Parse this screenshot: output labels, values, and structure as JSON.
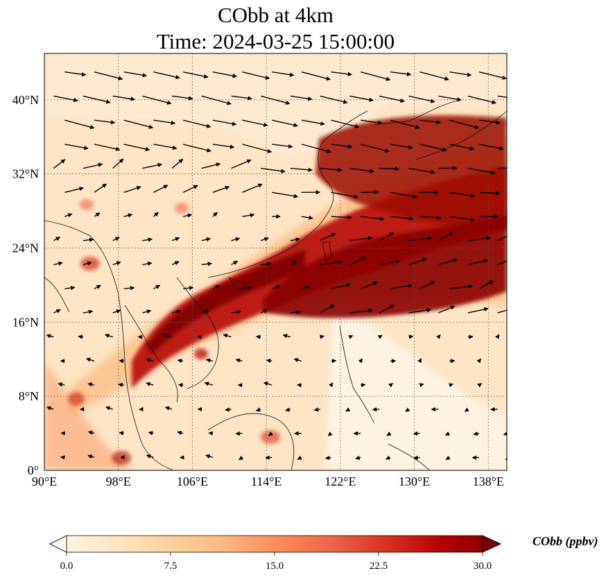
{
  "title": {
    "line1": "CObb at 4km",
    "line2": "Time: 2024-03-25 15:00:00"
  },
  "map": {
    "variable": "CObb",
    "level": "4km",
    "lon_ticks": [
      "90°E",
      "98°E",
      "106°E",
      "114°E",
      "122°E",
      "130°E",
      "138°E"
    ],
    "lat_ticks": [
      "0°",
      "8°N",
      "16°N",
      "24°N",
      "32°N",
      "40°N"
    ],
    "lon_range": [
      90,
      140
    ],
    "lat_range": [
      0,
      45
    ],
    "gridlines": true,
    "gridline_style": "dotted",
    "overlay": "wind vectors"
  },
  "colorbar": {
    "label": "CObb (ppbv)",
    "ticks": [
      "0.0",
      "7.5",
      "15.0",
      "22.5",
      "30.0"
    ],
    "min": 0,
    "max": 30,
    "extend": "both",
    "colormap": "OrRd",
    "colors": [
      "#fff7ec",
      "#fee8c8",
      "#fdd49e",
      "#fdbb84",
      "#fc8d59",
      "#ef6548",
      "#d7301f",
      "#b30000",
      "#7f0000"
    ]
  }
}
